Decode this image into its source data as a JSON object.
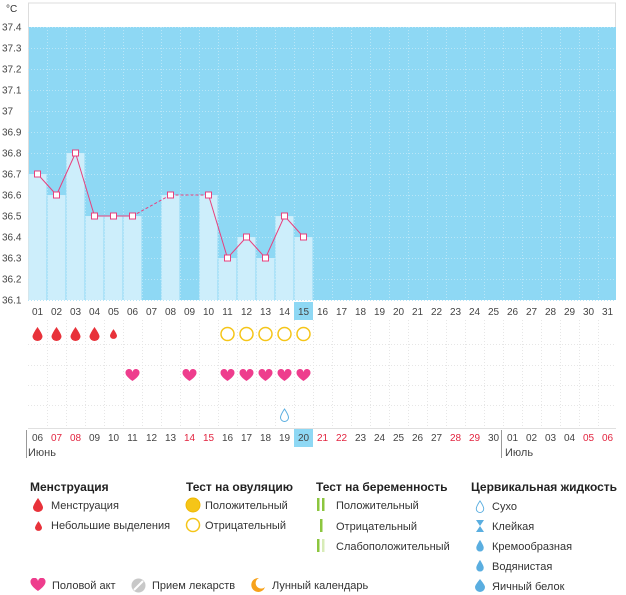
{
  "chart_data": {
    "type": "line",
    "yunit": "°C",
    "yticks": [
      "37.4",
      "37.3",
      "37.2",
      "37.1",
      "37",
      "36.9",
      "36.8",
      "36.7",
      "36.6",
      "36.5",
      "36.4",
      "36.3",
      "36.2",
      "36.1"
    ],
    "ylim": [
      36.1,
      37.4
    ],
    "cycle_days": [
      "01",
      "02",
      "03",
      "04",
      "05",
      "06",
      "07",
      "08",
      "09",
      "10",
      "11",
      "12",
      "13",
      "14",
      "15",
      "16",
      "17",
      "18",
      "19",
      "20",
      "21",
      "22",
      "23",
      "24",
      "25",
      "26",
      "27",
      "28",
      "29",
      "30",
      "31"
    ],
    "current_cycle_day": "15",
    "temperatures": [
      36.7,
      36.6,
      36.8,
      36.5,
      36.5,
      36.5,
      null,
      36.6,
      null,
      36.6,
      36.3,
      36.4,
      36.3,
      36.5,
      36.4
    ],
    "menstruation": [
      "heavy",
      "heavy",
      "heavy",
      "heavy",
      "light"
    ],
    "ovulation_tests": {
      "11": "negative",
      "12": "negative",
      "13": "negative",
      "14": "negative",
      "15": "negative"
    },
    "intercourse_days": [
      "06",
      "09",
      "11",
      "12",
      "13",
      "14",
      "15"
    ],
    "cervical_fluid": {
      "14": "dry"
    },
    "dates": [
      {
        "d": "06",
        "w": false
      },
      {
        "d": "07",
        "w": true
      },
      {
        "d": "08",
        "w": true
      },
      {
        "d": "09",
        "w": false
      },
      {
        "d": "10",
        "w": false
      },
      {
        "d": "11",
        "w": false
      },
      {
        "d": "12",
        "w": false
      },
      {
        "d": "13",
        "w": false
      },
      {
        "d": "14",
        "w": true
      },
      {
        "d": "15",
        "w": true
      },
      {
        "d": "16",
        "w": false
      },
      {
        "d": "17",
        "w": false
      },
      {
        "d": "18",
        "w": false
      },
      {
        "d": "19",
        "w": false
      },
      {
        "d": "20",
        "w": false
      },
      {
        "d": "21",
        "w": true
      },
      {
        "d": "22",
        "w": true
      },
      {
        "d": "23",
        "w": false
      },
      {
        "d": "24",
        "w": false
      },
      {
        "d": "25",
        "w": false
      },
      {
        "d": "26",
        "w": false
      },
      {
        "d": "27",
        "w": false
      },
      {
        "d": "28",
        "w": true
      },
      {
        "d": "29",
        "w": true
      },
      {
        "d": "30",
        "w": false
      },
      {
        "d": "01",
        "w": false
      },
      {
        "d": "02",
        "w": false
      },
      {
        "d": "03",
        "w": false
      },
      {
        "d": "04",
        "w": false
      },
      {
        "d": "05",
        "w": true
      },
      {
        "d": "06",
        "w": true
      }
    ],
    "current_date": "20",
    "month_labels": [
      "Июнь",
      "Июль"
    ]
  },
  "colors": {
    "chart_bg": "#8ed8f4",
    "bar": "#cdeefb",
    "line": "#e8407d",
    "blood": "#e8323a",
    "heart": "#ee3d8d",
    "ovulation": "#f5c518",
    "weekend": "#e2243f",
    "highlight": "#8ed8f4"
  },
  "legend": {
    "menstruation": {
      "title": "Менструация",
      "items": [
        "Менструация",
        "Небольшие выделения"
      ]
    },
    "ovulation": {
      "title": "Тест на овуляцию",
      "items": [
        "Положительный",
        "Отрицательный"
      ]
    },
    "pregnancy": {
      "title": "Тест на беременность",
      "items": [
        "Положительный",
        "Отрицательный",
        "Слабоположительный"
      ]
    },
    "cervical": {
      "title": "Цервикальная жидкость",
      "items": [
        "Сухо",
        "Клейкая",
        "Кремообразная",
        "Водянистая",
        "Яичный белок"
      ]
    },
    "bottom": [
      "Половой акт",
      "Прием лекарств",
      "Лунный календарь"
    ]
  }
}
